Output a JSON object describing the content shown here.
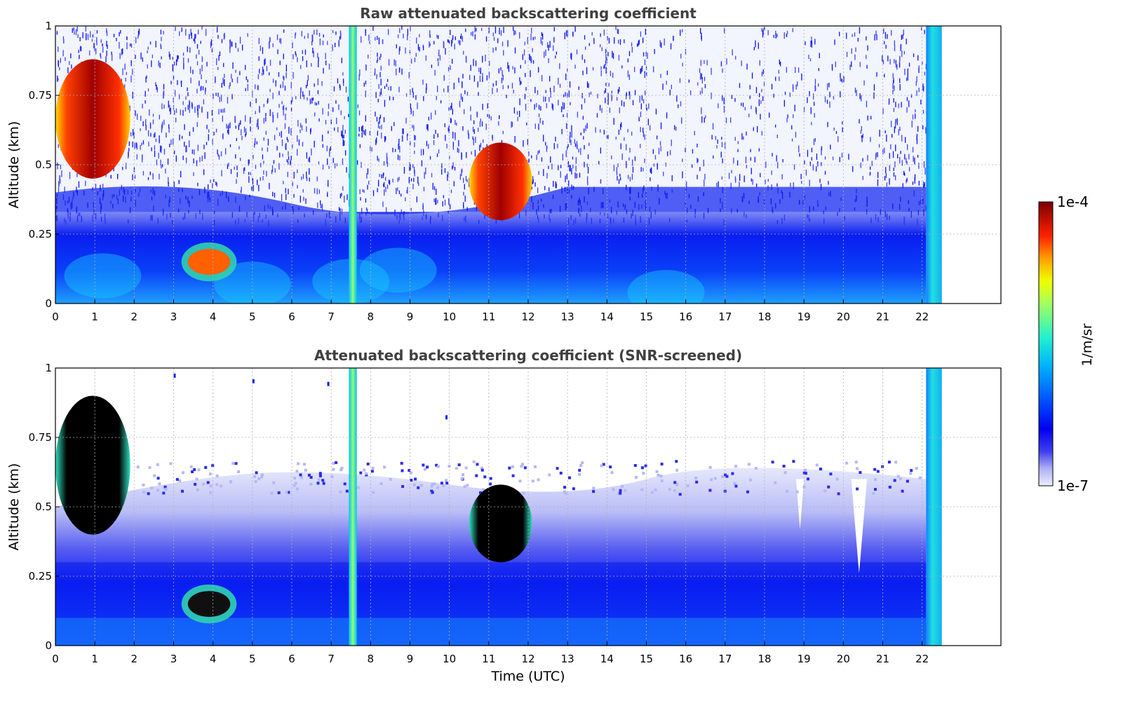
{
  "chart_data": [
    {
      "type": "heatmap",
      "title": "Raw attenuated backscattering coefficient",
      "xlabel": "",
      "ylabel": "Altitude (km)",
      "xlim": [
        0,
        24
      ],
      "ylim": [
        0,
        1
      ],
      "xticks": [
        "0",
        "1",
        "2",
        "3",
        "4",
        "5",
        "6",
        "7",
        "8",
        "9",
        "10",
        "11",
        "12",
        "13",
        "14",
        "15",
        "16",
        "17",
        "18",
        "19",
        "20",
        "21",
        "22"
      ],
      "yticks": [
        "0",
        "0.25",
        "0.5",
        "0.75",
        "1"
      ],
      "grid": true,
      "data_end_time": 22.5,
      "features": [
        {
          "label": "cloud",
          "t_start": 0.0,
          "t_end": 1.9,
          "alt_bottom": 0.45,
          "alt_top": 0.88,
          "level": "high"
        },
        {
          "label": "cloud",
          "t_start": 10.5,
          "t_end": 12.1,
          "alt_bottom": 0.3,
          "alt_top": 0.58,
          "level": "high"
        },
        {
          "label": "aerosol layer",
          "t_start": 3.2,
          "t_end": 4.6,
          "alt_bottom": 0.08,
          "alt_top": 0.22,
          "level": "medium-high"
        },
        {
          "label": "boundary layer",
          "t_start": 0.0,
          "t_end": 22.1,
          "alt_bottom": 0.0,
          "alt_top": 0.33,
          "level": "low"
        },
        {
          "label": "vertical streak",
          "t_start": 7.45,
          "t_end": 7.65,
          "alt_bottom": 0.0,
          "alt_top": 1.0,
          "level": "medium"
        }
      ]
    },
    {
      "type": "heatmap",
      "title": "Attenuated backscattering coefficient (SNR-screened)",
      "xlabel": "Time (UTC)",
      "ylabel": "Altitude (km)",
      "xlim": [
        0,
        24
      ],
      "ylim": [
        0,
        1
      ],
      "xticks": [
        "0",
        "1",
        "2",
        "3",
        "4",
        "5",
        "6",
        "7",
        "8",
        "9",
        "10",
        "11",
        "12",
        "13",
        "14",
        "15",
        "16",
        "17",
        "18",
        "19",
        "20",
        "21",
        "22"
      ],
      "yticks": [
        "0",
        "0.25",
        "0.5",
        "0.75",
        "1"
      ],
      "grid": true,
      "data_end_time": 22.5,
      "features": [
        {
          "label": "cloud",
          "t_start": 0.0,
          "t_end": 1.9,
          "alt_bottom": 0.4,
          "alt_top": 0.9,
          "level": "saturated"
        },
        {
          "label": "cloud",
          "t_start": 10.5,
          "t_end": 12.1,
          "alt_bottom": 0.3,
          "alt_top": 0.58,
          "level": "saturated"
        },
        {
          "label": "aerosol layer",
          "t_start": 3.2,
          "t_end": 4.6,
          "alt_bottom": 0.08,
          "alt_top": 0.22,
          "level": "saturated"
        },
        {
          "label": "screened boundary",
          "t_start": 2.0,
          "t_end": 22.1,
          "alt_bottom": 0.0,
          "alt_top": 0.65,
          "level": "low"
        }
      ]
    }
  ],
  "colorbar": {
    "label": "1/m/sr",
    "max_label": "1e-4",
    "min_label": "1e-7",
    "scale": "log",
    "colors": [
      "#eeeefe",
      "#c8c8f8",
      "#9898f0",
      "#5050f0",
      "#1010f0",
      "#0038ff",
      "#0088ff",
      "#00d0ff",
      "#40f0c0",
      "#a0ff60",
      "#f0ff00",
      "#ffc000",
      "#ff7000",
      "#ff2000",
      "#d00000",
      "#8b0000"
    ]
  }
}
